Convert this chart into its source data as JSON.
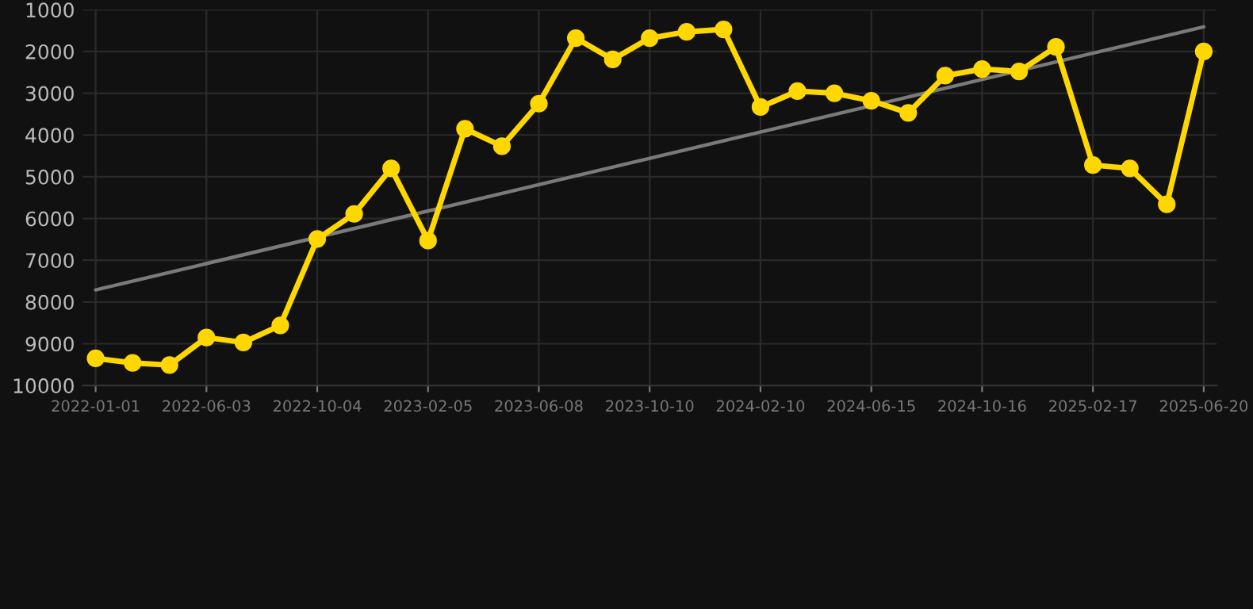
{
  "chart_data": {
    "type": "line",
    "categories": [
      "2022-01-01",
      null,
      null,
      "2022-06-03",
      null,
      null,
      "2022-10-04",
      null,
      null,
      "2023-02-05",
      null,
      null,
      "2023-06-08",
      null,
      null,
      "2023-10-10",
      null,
      null,
      "2024-02-10",
      null,
      null,
      "2024-06-15",
      null,
      null,
      "2024-10-16",
      null,
      null,
      "2025-02-17",
      null,
      null,
      "2025-06-20"
    ],
    "series": [
      {
        "color": "#ffd700",
        "marker": "circle",
        "values": [
          9350,
          9460,
          9510,
          8850,
          8970,
          8560,
          6490,
          5890,
          4800,
          6530,
          3850,
          4270,
          3250,
          1680,
          2190,
          1680,
          1530,
          1470,
          3330,
          2950,
          3000,
          3180,
          3470,
          2580,
          2420,
          2480,
          1890,
          4720,
          4800,
          5660,
          2000
        ]
      },
      {
        "type": "line",
        "color": "#7a7a7a",
        "marker": "none",
        "values": [
          7710,
          null,
          null,
          null,
          null,
          null,
          null,
          null,
          null,
          null,
          null,
          null,
          null,
          null,
          null,
          null,
          null,
          null,
          null,
          null,
          null,
          null,
          null,
          null,
          null,
          null,
          null,
          null,
          null,
          null,
          1410
        ]
      }
    ],
    "ylim": [
      10000,
      1000
    ],
    "yticks": [
      1000,
      2000,
      3000,
      4000,
      5000,
      6000,
      7000,
      8000,
      9000,
      10000
    ],
    "grid": true,
    "legend": false
  }
}
